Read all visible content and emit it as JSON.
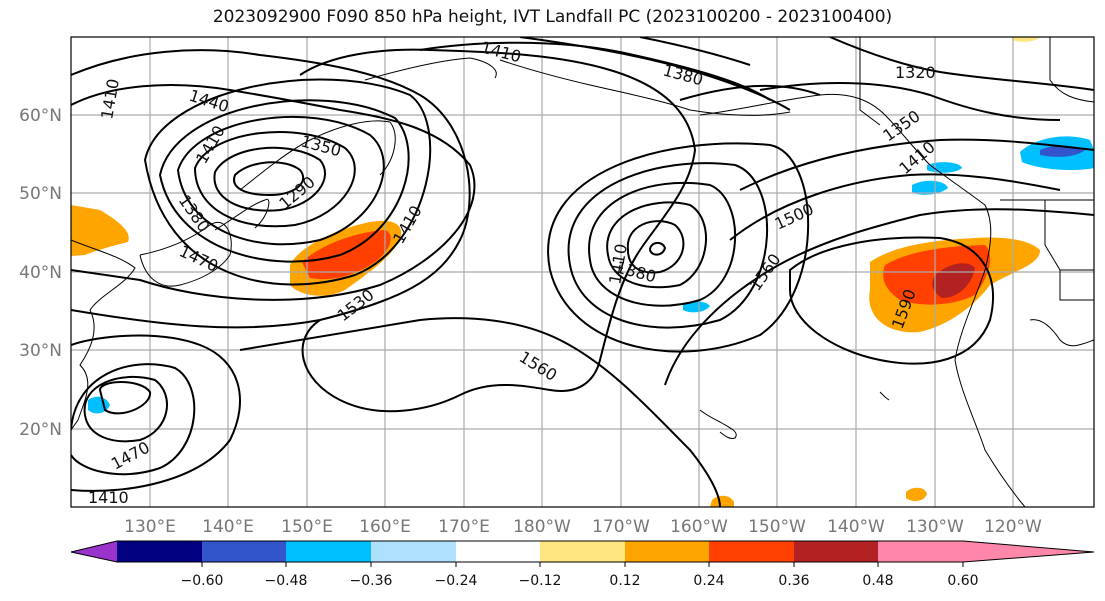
{
  "title": "2023092900 F090 850 hPa height, IVT Landfall PC (2023100200 - 2023100400)",
  "map": {
    "lon_labels": [
      "130°E",
      "140°E",
      "150°E",
      "160°E",
      "170°E",
      "180°W",
      "170°W",
      "160°W",
      "150°W",
      "140°W",
      "130°W",
      "120°W"
    ],
    "lat_labels": [
      "60°N",
      "50°N",
      "40°N",
      "30°N",
      "20°N"
    ],
    "contour_labels": [
      "1410",
      "1440",
      "1350",
      "1410",
      "1290",
      "1380",
      "1470",
      "1410",
      "1530",
      "1560",
      "1410",
      "1380",
      "1500",
      "1560",
      "1590",
      "1350",
      "1320",
      "1410",
      "1470",
      "1410",
      "1380",
      "1410"
    ]
  },
  "colorbar": {
    "colors": [
      "#9933cc",
      "#000080",
      "#3355cc",
      "#00bfff",
      "#b0e0ff",
      "#ffffff",
      "#ffe680",
      "#ffa500",
      "#ff4000",
      "#b22222",
      "#ff88aa"
    ],
    "tick_labels": [
      "−0.60",
      "−0.48",
      "−0.36",
      "−0.24",
      "−0.12",
      "0.12",
      "0.24",
      "0.36",
      "0.48",
      "0.60"
    ]
  }
}
